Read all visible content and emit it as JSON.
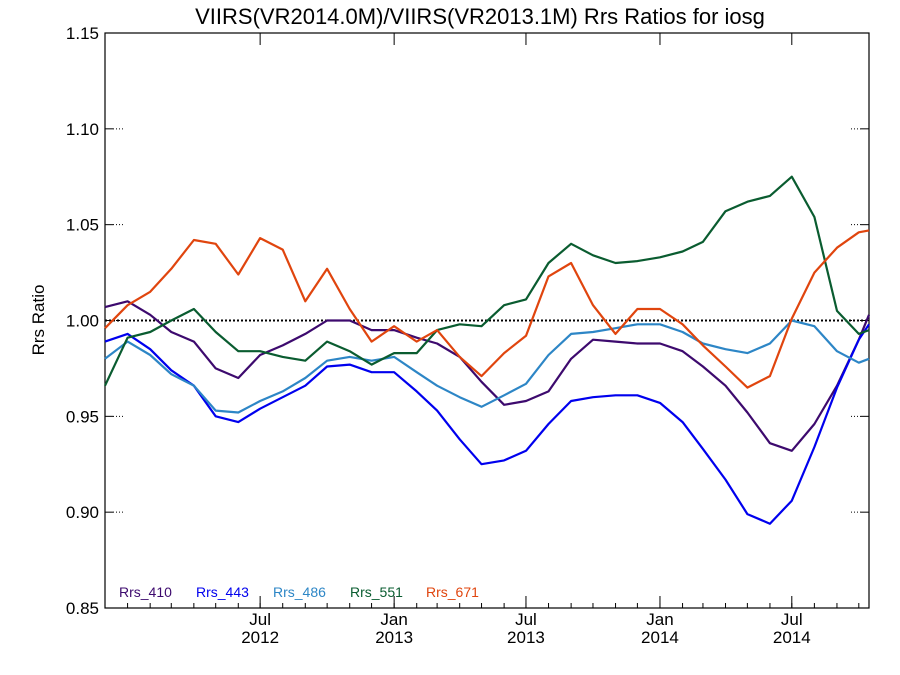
{
  "chart_data": {
    "type": "line",
    "title": "VIIRS(VR2014.0M)/VIIRS(VR2013.1M)  Rrs Ratios for iosg",
    "xlabel": "",
    "ylabel": "Rrs Ratio",
    "xlim": [
      "2011-12-01",
      "2014-10-15"
    ],
    "ylim": [
      0.85,
      1.15
    ],
    "y_ticks": [
      "0.85",
      "0.90",
      "0.95",
      "1.00",
      "1.05",
      "1.10",
      "1.15"
    ],
    "x_ticks": [
      {
        "date": "2012-07-01",
        "month": "Jul",
        "year": "2012"
      },
      {
        "date": "2013-01-01",
        "month": "Jan",
        "year": "2013"
      },
      {
        "date": "2013-07-01",
        "month": "Jul",
        "year": "2013"
      },
      {
        "date": "2014-01-01",
        "month": "Jan",
        "year": "2014"
      },
      {
        "date": "2014-07-01",
        "month": "Jul",
        "year": "2014"
      }
    ],
    "reference_line": 1.0,
    "grid": false,
    "legend_position": "bottom-left",
    "x": [
      "2011-12-01",
      "2012-01-01",
      "2012-02-01",
      "2012-03-01",
      "2012-04-01",
      "2012-05-01",
      "2012-06-01",
      "2012-07-01",
      "2012-08-01",
      "2012-09-01",
      "2012-10-01",
      "2012-11-01",
      "2012-12-01",
      "2013-01-01",
      "2013-02-01",
      "2013-03-01",
      "2013-04-01",
      "2013-05-01",
      "2013-06-01",
      "2013-07-01",
      "2013-08-01",
      "2013-09-01",
      "2013-10-01",
      "2013-11-01",
      "2013-12-01",
      "2014-01-01",
      "2014-02-01",
      "2014-03-01",
      "2014-04-01",
      "2014-05-01",
      "2014-06-01",
      "2014-07-01",
      "2014-08-01",
      "2014-09-01",
      "2014-10-01",
      "2014-10-15"
    ],
    "series": [
      {
        "name": "Rrs_410",
        "color": "#3d0a6e",
        "values": [
          1.007,
          1.01,
          1.003,
          0.994,
          0.989,
          0.975,
          0.97,
          0.982,
          0.987,
          0.993,
          1.0,
          1.0,
          0.995,
          0.995,
          0.991,
          0.988,
          0.981,
          0.968,
          0.956,
          0.958,
          0.963,
          0.98,
          0.99,
          0.989,
          0.988,
          0.988,
          0.984,
          0.976,
          0.966,
          0.952,
          0.936,
          0.932,
          0.946,
          0.966,
          0.99,
          1.003
        ]
      },
      {
        "name": "Rrs_443",
        "color": "#0000ee",
        "values": [
          0.989,
          0.993,
          0.985,
          0.974,
          0.966,
          0.95,
          0.947,
          0.954,
          0.96,
          0.966,
          0.976,
          0.977,
          0.973,
          0.973,
          0.963,
          0.953,
          0.938,
          0.925,
          0.927,
          0.932,
          0.946,
          0.958,
          0.96,
          0.961,
          0.961,
          0.957,
          0.947,
          0.933,
          0.917,
          0.899,
          0.894,
          0.906,
          0.934,
          0.965,
          0.99,
          0.998
        ]
      },
      {
        "name": "Rrs_486",
        "color": "#2d86c6",
        "values": [
          0.98,
          0.989,
          0.982,
          0.972,
          0.966,
          0.953,
          0.952,
          0.958,
          0.963,
          0.97,
          0.979,
          0.981,
          0.979,
          0.981,
          0.973,
          0.966,
          0.96,
          0.955,
          0.961,
          0.967,
          0.982,
          0.993,
          0.994,
          0.996,
          0.998,
          0.998,
          0.994,
          0.988,
          0.985,
          0.983,
          0.988,
          1.0,
          0.997,
          0.984,
          0.978,
          0.98
        ]
      },
      {
        "name": "Rrs_551",
        "color": "#0a5c30",
        "values": [
          0.966,
          0.991,
          0.994,
          1.0,
          1.006,
          0.994,
          0.984,
          0.984,
          0.981,
          0.979,
          0.989,
          0.984,
          0.977,
          0.983,
          0.983,
          0.995,
          0.998,
          0.997,
          1.008,
          1.011,
          1.03,
          1.04,
          1.034,
          1.03,
          1.031,
          1.033,
          1.036,
          1.041,
          1.057,
          1.062,
          1.065,
          1.075,
          1.054,
          1.005,
          0.993,
          0.995
        ]
      },
      {
        "name": "Rrs_671",
        "color": "#e0450e",
        "values": [
          0.996,
          1.008,
          1.015,
          1.027,
          1.042,
          1.04,
          1.024,
          1.043,
          1.037,
          1.01,
          1.027,
          1.006,
          0.989,
          0.997,
          0.989,
          0.995,
          0.981,
          0.971,
          0.983,
          0.992,
          1.023,
          1.03,
          1.008,
          0.993,
          1.006,
          1.006,
          0.998,
          0.987,
          0.976,
          0.965,
          0.971,
          1.001,
          1.025,
          1.038,
          1.046,
          1.047
        ]
      }
    ]
  }
}
